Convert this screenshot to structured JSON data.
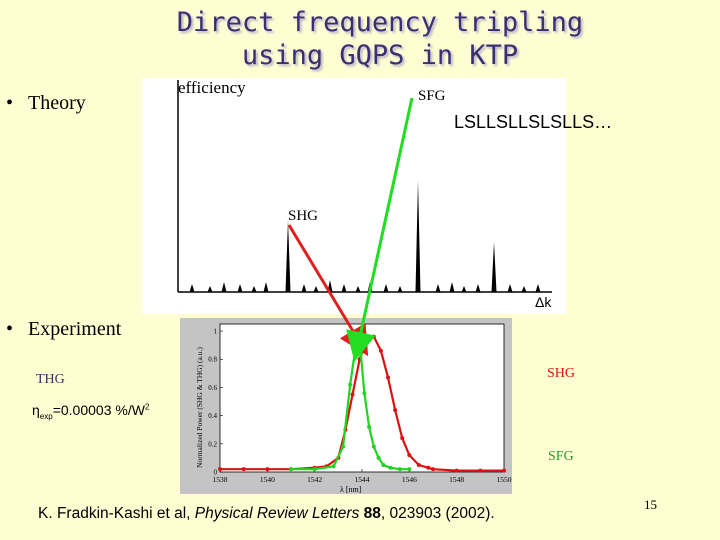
{
  "title": {
    "line1": "Direct frequency tripling",
    "line2": "using GQPS in KTP"
  },
  "bullets": {
    "theory": "Theory",
    "experiment": "Experiment"
  },
  "theory_chart": {
    "ylabel": "efficiency",
    "xlabel": "Δk",
    "peak_sfg": "SFG",
    "peak_shg": "SHG",
    "sequence": "LSLLSLLSLSLLS…"
  },
  "experiment_labels": {
    "thg": "THG",
    "shg": "SHG",
    "sfg": "SFG",
    "eta_symbol": "η",
    "eta_sub": "exp",
    "eta_value": "=0.00003 %/W",
    "eta_sup": "2"
  },
  "chart_data": {
    "type": "line",
    "xlabel": "λ [nm]",
    "ylabel": "Normalized Power (SHG & THG) (a.u.)",
    "xticks": [
      "1538",
      "1540",
      "1542",
      "1544",
      "1546",
      "1548",
      "1550"
    ],
    "yticks": [
      "0",
      "0.2",
      "0.4",
      "0.6",
      "0.8",
      "1"
    ],
    "xlim": [
      1538,
      1550
    ],
    "ylim": [
      0,
      1.05
    ],
    "colors": {
      "shg": "#dd1111",
      "thg": "#22d422"
    },
    "series": [
      {
        "name": "SHG",
        "x": [
          1538,
          1539,
          1540,
          1541,
          1542,
          1542.5,
          1543,
          1543.3,
          1543.6,
          1543.9,
          1544.2,
          1544.5,
          1544.8,
          1545.1,
          1545.4,
          1545.7,
          1546,
          1546.4,
          1546.8,
          1547,
          1548,
          1549,
          1550
        ],
        "y": [
          0.02,
          0.02,
          0.02,
          0.02,
          0.03,
          0.04,
          0.1,
          0.3,
          0.55,
          0.8,
          0.94,
          0.96,
          0.86,
          0.67,
          0.44,
          0.24,
          0.12,
          0.05,
          0.03,
          0.02,
          0.01,
          0.01,
          0.01
        ]
      },
      {
        "name": "THG",
        "x": [
          1541,
          1542,
          1542.8,
          1543.2,
          1543.5,
          1543.8,
          1543.95,
          1544.1,
          1544.3,
          1544.5,
          1544.7,
          1544.9,
          1545.2,
          1545.6,
          1546
        ],
        "y": [
          0.02,
          0.02,
          0.04,
          0.18,
          0.62,
          0.97,
          0.84,
          0.56,
          0.32,
          0.18,
          0.1,
          0.05,
          0.03,
          0.02,
          0.02
        ]
      }
    ]
  },
  "citation": {
    "authors": "K. Fradkin-Kashi et al, ",
    "journal": "Physical Review Letters",
    "volume": " 88",
    "rest": ", 023903 (2002)."
  },
  "page_number": "15"
}
